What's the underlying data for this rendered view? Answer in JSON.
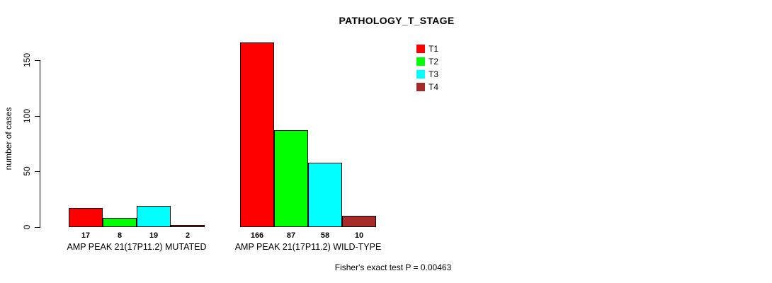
{
  "chart_data": {
    "type": "bar",
    "title": "PATHOLOGY_T_STAGE",
    "ylabel": "number of cases",
    "xlabel": "",
    "yticks": [
      0,
      50,
      100,
      150
    ],
    "ylim": [
      0,
      166
    ],
    "grid": false,
    "legend_position": "top-right",
    "categories": [
      "AMP PEAK 21(17P11.2) MUTATED",
      "AMP PEAK 21(17P11.2) WILD-TYPE"
    ],
    "series": [
      {
        "name": "T1",
        "color": "#FF0000",
        "values": [
          17,
          166
        ]
      },
      {
        "name": "T2",
        "color": "#00FF00",
        "values": [
          8,
          87
        ]
      },
      {
        "name": "T3",
        "color": "#00FFFF",
        "values": [
          19,
          58
        ]
      },
      {
        "name": "T4",
        "color": "#A52A2A",
        "values": [
          2,
          10
        ]
      }
    ],
    "bar_value_labels": [
      [
        17,
        8,
        19,
        2
      ],
      [
        166,
        87,
        58,
        10
      ]
    ],
    "annotation": "Fisher's exact test P = 0.00463"
  }
}
